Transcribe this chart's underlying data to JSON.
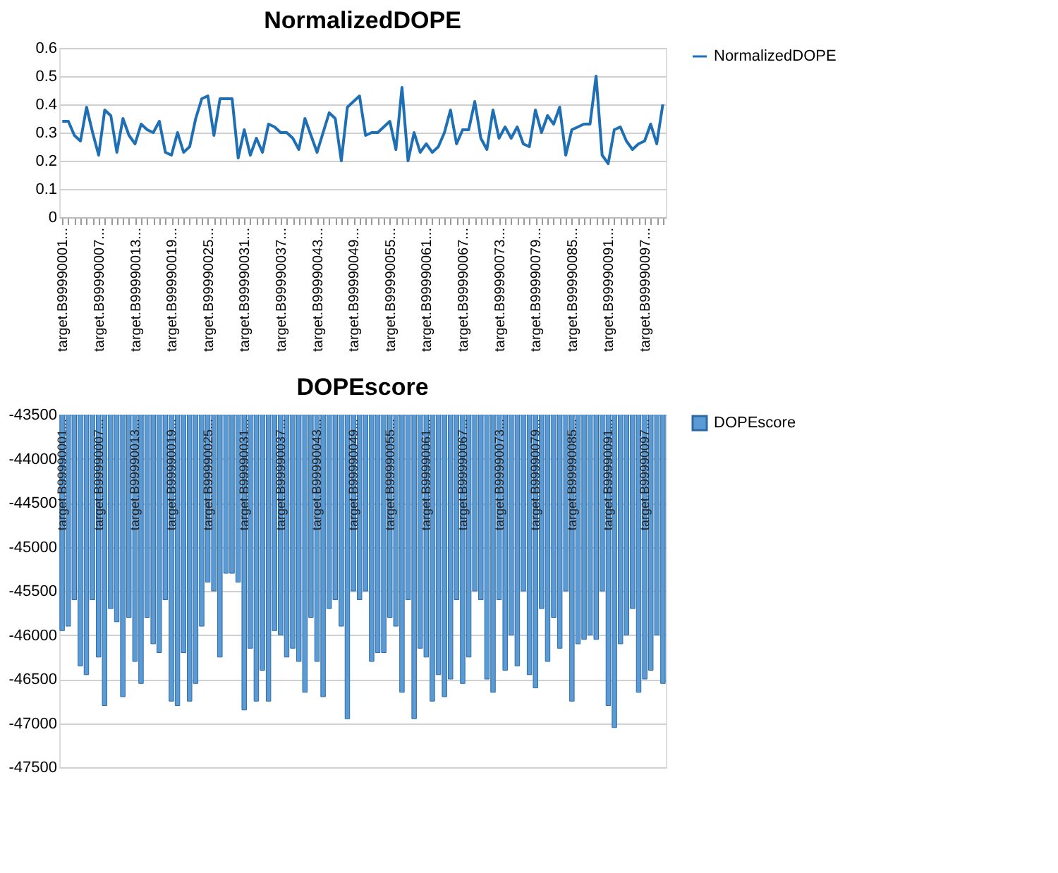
{
  "chart_data": [
    {
      "type": "line",
      "title": "NormalizedDOPE",
      "categories": [
        "target.B99990001...",
        null,
        null,
        null,
        null,
        null,
        "target.B99990007...",
        null,
        null,
        null,
        null,
        null,
        "target.B99990013...",
        null,
        null,
        null,
        null,
        null,
        "target.B99990019...",
        null,
        null,
        null,
        null,
        null,
        "target.B99990025...",
        null,
        null,
        null,
        null,
        null,
        "target.B99990031...",
        null,
        null,
        null,
        null,
        null,
        "target.B99990037...",
        null,
        null,
        null,
        null,
        null,
        "target.B99990043...",
        null,
        null,
        null,
        null,
        null,
        "target.B99990049...",
        null,
        null,
        null,
        null,
        null,
        "target.B99990055...",
        null,
        null,
        null,
        null,
        null,
        "target.B99990061...",
        null,
        null,
        null,
        null,
        null,
        "target.B99990067...",
        null,
        null,
        null,
        null,
        null,
        "target.B99990073...",
        null,
        null,
        null,
        null,
        null,
        "target.B99990079...",
        null,
        null,
        null,
        null,
        null,
        "target.B99990085...",
        null,
        null,
        null,
        null,
        null,
        "target.B99990091...",
        null,
        null,
        null,
        null,
        null,
        "target.B99990097...",
        null,
        null,
        null
      ],
      "series": [
        {
          "name": "NormalizedDOPE",
          "color": "#1f6fb4",
          "values": [
            0.34,
            0.34,
            0.29,
            0.27,
            0.39,
            0.3,
            0.22,
            0.38,
            0.36,
            0.23,
            0.35,
            0.29,
            0.26,
            0.33,
            0.31,
            0.3,
            0.34,
            0.23,
            0.22,
            0.3,
            0.23,
            0.25,
            0.35,
            0.42,
            0.43,
            0.29,
            0.42,
            0.42,
            0.42,
            0.21,
            0.31,
            0.22,
            0.28,
            0.23,
            0.33,
            0.32,
            0.3,
            0.3,
            0.28,
            0.24,
            0.35,
            0.29,
            0.23,
            0.3,
            0.37,
            0.35,
            0.2,
            0.39,
            0.41,
            0.43,
            0.29,
            0.3,
            0.3,
            0.32,
            0.34,
            0.24,
            0.46,
            0.2,
            0.3,
            0.23,
            0.26,
            0.23,
            0.25,
            0.3,
            0.38,
            0.26,
            0.31,
            0.31,
            0.41,
            0.28,
            0.24,
            0.38,
            0.28,
            0.32,
            0.28,
            0.32,
            0.26,
            0.25,
            0.38,
            0.3,
            0.36,
            0.33,
            0.39,
            0.22,
            0.31,
            0.32,
            0.33,
            0.33,
            0.5,
            0.22,
            0.19,
            0.31,
            0.32,
            0.27,
            0.24,
            0.26,
            0.27,
            0.33,
            0.26,
            0.4
          ]
        }
      ],
      "ylim": [
        0,
        0.6
      ],
      "yticks": [
        0,
        0.1,
        0.2,
        0.3,
        0.4,
        0.5,
        0.6
      ],
      "grid": "y",
      "legend": "right",
      "marker": "none",
      "line_style": "solid"
    },
    {
      "type": "bar",
      "title": "DOPEscore",
      "categories": [
        "target.B99990001...",
        null,
        null,
        null,
        null,
        null,
        "target.B99990007...",
        null,
        null,
        null,
        null,
        null,
        "target.B99990013...",
        null,
        null,
        null,
        null,
        null,
        "target.B99990019...",
        null,
        null,
        null,
        null,
        null,
        "target.B99990025...",
        null,
        null,
        null,
        null,
        null,
        "target.B99990031...",
        null,
        null,
        null,
        null,
        null,
        "target.B99990037...",
        null,
        null,
        null,
        null,
        null,
        "target.B99990043...",
        null,
        null,
        null,
        null,
        null,
        "target.B99990049...",
        null,
        null,
        null,
        null,
        null,
        "target.B99990055...",
        null,
        null,
        null,
        null,
        null,
        "target.B99990061...",
        null,
        null,
        null,
        null,
        null,
        "target.B99990067...",
        null,
        null,
        null,
        null,
        null,
        "target.B99990073...",
        null,
        null,
        null,
        null,
        null,
        "target.B99990079...",
        null,
        null,
        null,
        null,
        null,
        "target.B99990085...",
        null,
        null,
        null,
        null,
        null,
        "target.B99990091...",
        null,
        null,
        null,
        null,
        null,
        "target.B99990097...",
        null,
        null,
        null
      ],
      "series": [
        {
          "name": "DOPEscore",
          "color": "#5b9bd5",
          "values": [
            -45950,
            -45900,
            -45600,
            -46350,
            -46450,
            -45600,
            -46250,
            -46800,
            -45700,
            -45850,
            -46700,
            -45800,
            -46300,
            -46550,
            -45800,
            -46100,
            -46200,
            -45600,
            -46750,
            -46800,
            -46200,
            -46750,
            -46550,
            -45900,
            -45400,
            -45500,
            -46250,
            -45300,
            -45300,
            -45400,
            -46850,
            -46150,
            -46750,
            -46400,
            -46750,
            -45950,
            -46000,
            -46250,
            -46150,
            -46300,
            -46650,
            -45800,
            -46300,
            -46700,
            -45700,
            -45600,
            -45900,
            -46950,
            -45500,
            -45600,
            -45500,
            -46300,
            -46200,
            -46200,
            -45800,
            -45900,
            -46650,
            -45600,
            -46950,
            -46150,
            -46250,
            -46750,
            -46450,
            -46700,
            -46500,
            -45600,
            -46550,
            -46250,
            -45500,
            -45600,
            -46500,
            -46650,
            -45600,
            -46400,
            -46000,
            -46350,
            -45500,
            -46450,
            -46600,
            -45700,
            -46300,
            -45800,
            -46150,
            -45500,
            -46750,
            -46100,
            -46050,
            -46000,
            -46050,
            -45500,
            -46800,
            -47050,
            -46100,
            -46000,
            -45700,
            -46650,
            -46500,
            -46400,
            -46000,
            -46550
          ]
        }
      ],
      "ylim": [
        -47500,
        -43500
      ],
      "yticks": [
        -47500,
        -47000,
        -46500,
        -46000,
        -45500,
        -45000,
        -44500,
        -44000,
        -43500
      ],
      "grid": "y",
      "legend": "right"
    }
  ]
}
